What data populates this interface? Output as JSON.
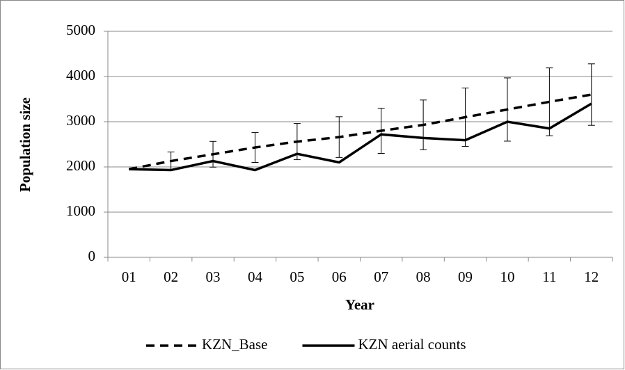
{
  "chart_data": {
    "type": "line",
    "x_label": "Year",
    "y_label": "Population size",
    "categories": [
      "01",
      "02",
      "03",
      "04",
      "05",
      "06",
      "07",
      "08",
      "09",
      "10",
      "11",
      "12"
    ],
    "series": [
      {
        "name": "KZN_Base",
        "color": "#000000",
        "line_style": "dashed",
        "values": [
          1950,
          2130,
          2280,
          2430,
          2560,
          2660,
          2800,
          2930,
          3100,
          3270,
          3440,
          3600
        ],
        "errors": [
          null,
          200,
          285,
          330,
          400,
          450,
          500,
          550,
          645,
          700,
          750,
          680
        ]
      },
      {
        "name": "KZN aerial counts",
        "color": "#000000",
        "line_style": "solid",
        "values": [
          1950,
          1930,
          2130,
          1930,
          2290,
          2100,
          2720,
          2640,
          2590,
          3000,
          2850,
          3400
        ]
      }
    ],
    "ylim": [
      0,
      5000
    ],
    "yticks": [
      0,
      1000,
      2000,
      3000,
      4000,
      5000
    ],
    "grid": true,
    "legend": "bottom"
  }
}
